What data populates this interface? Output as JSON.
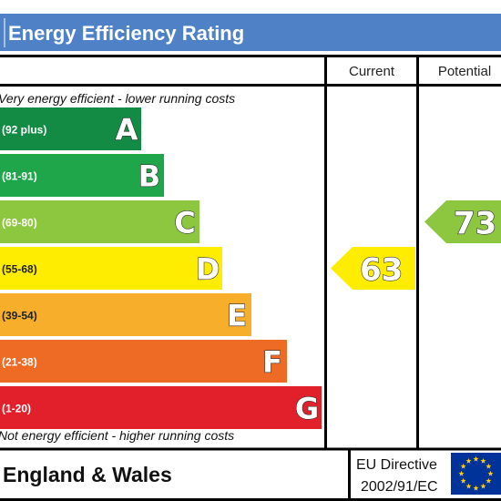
{
  "chart_data": {
    "type": "bar",
    "title": "Energy Efficiency Rating",
    "columns": {
      "current": "Current",
      "potential": "Potential"
    },
    "top_note": "Very energy efficient - lower running costs",
    "bottom_note": "Not energy efficient - higher running costs",
    "bands": [
      {
        "letter": "A",
        "range": "(92 plus)",
        "color": "#138b44"
      },
      {
        "letter": "B",
        "range": "(81-91)",
        "color": "#1fa64a"
      },
      {
        "letter": "C",
        "range": "(69-80)",
        "color": "#8dc63f"
      },
      {
        "letter": "D",
        "range": "(55-68)",
        "color": "#ffed00"
      },
      {
        "letter": "E",
        "range": "(39-54)",
        "color": "#f7ae2a"
      },
      {
        "letter": "F",
        "range": "(21-38)",
        "color": "#ed6b25"
      },
      {
        "letter": "G",
        "range": "(1-20)",
        "color": "#e2202c"
      }
    ],
    "current": {
      "value": 63,
      "band": "D",
      "color": "#ffed00"
    },
    "potential": {
      "value": 73,
      "band": "C",
      "color": "#8dc63f"
    },
    "footer": {
      "region": "England & Wales",
      "directive_line1": "EU Directive",
      "directive_line2": "2002/91/EC"
    },
    "colors": {
      "title_bg": "#4f81c7",
      "eu_flag": "#003399",
      "eu_stars": "#ffcc00"
    }
  }
}
